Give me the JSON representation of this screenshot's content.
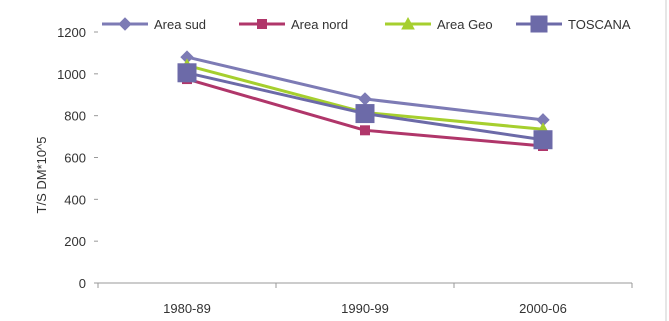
{
  "chart_data": {
    "type": "line",
    "title": "",
    "xlabel": "",
    "ylabel": "T/S DM*10^5",
    "categories": [
      "1980-89",
      "1990-99",
      "2000-06"
    ],
    "ylim": [
      0,
      1200
    ],
    "yticks": [
      0,
      200,
      400,
      600,
      800,
      1000,
      1200
    ],
    "grid": false,
    "legend_position": "top",
    "series": [
      {
        "name": "Area sud",
        "values": [
          1080,
          880,
          780
        ],
        "color": "#7d7bb5",
        "marker": "diamond"
      },
      {
        "name": "Area nord",
        "values": [
          975,
          730,
          655
        ],
        "color": "#b0366a",
        "marker": "square"
      },
      {
        "name": "Area Geo",
        "values": [
          1040,
          815,
          735
        ],
        "color": "#a6cf2e",
        "marker": "triangle"
      },
      {
        "name": "TOSCANA",
        "values": [
          1005,
          810,
          685
        ],
        "color": "#6c6aa8",
        "marker": "big-square"
      }
    ]
  }
}
